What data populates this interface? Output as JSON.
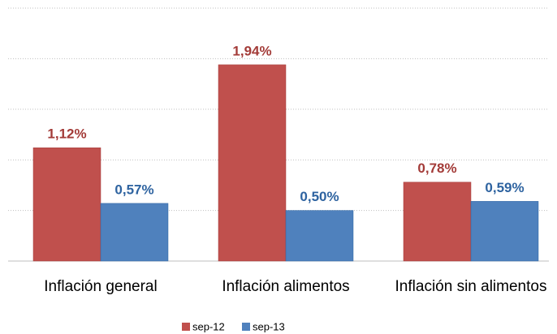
{
  "chart_data": {
    "type": "bar",
    "categories": [
      "Inflación general",
      "Inflación alimentos",
      "Inflación sin alimentos"
    ],
    "series": [
      {
        "name": "sep-12",
        "color": "#c0504d",
        "label_color": "#a33b38",
        "values": [
          1.12,
          1.94,
          0.78
        ],
        "value_labels": [
          "1,12%",
          "1,94%",
          "0,78%"
        ]
      },
      {
        "name": "sep-13",
        "color": "#4f81bd",
        "label_color": "#2e63a0",
        "values": [
          0.57,
          0.5,
          0.59
        ],
        "value_labels": [
          "0,57%",
          "0,50%",
          "0,59%"
        ]
      }
    ],
    "ylim": [
      0,
      2.5
    ],
    "yticks": [
      0,
      0.5,
      1,
      1.5,
      2,
      2.5
    ],
    "grid": true,
    "legend": "bottom"
  }
}
